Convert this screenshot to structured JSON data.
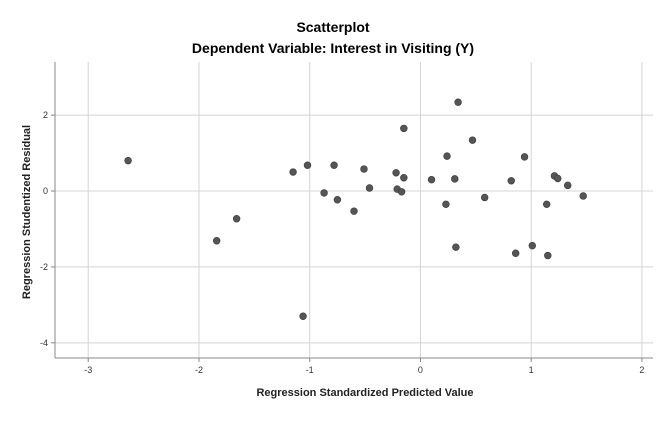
{
  "chart_data": {
    "type": "scatter",
    "title": "Scatterplot",
    "subtitle": "Dependent Variable: Interest in Visiting (Y)",
    "xlabel": "Regression Standardized Predicted Value",
    "ylabel": "Regression Studentized Residual",
    "xlim": [
      -3.3,
      2.1
    ],
    "ylim": [
      -4.4,
      3.4
    ],
    "xticks": [
      -3,
      -2,
      -1,
      0,
      1,
      2
    ],
    "yticks": [
      -4,
      -2,
      0,
      2
    ],
    "grid": true,
    "point_color": "#555555",
    "points": [
      {
        "x": -2.64,
        "y": 0.8
      },
      {
        "x": -1.84,
        "y": -1.31
      },
      {
        "x": -1.66,
        "y": -0.73
      },
      {
        "x": -1.15,
        "y": 0.5
      },
      {
        "x": -1.06,
        "y": -3.3
      },
      {
        "x": -1.02,
        "y": 0.68
      },
      {
        "x": -0.87,
        "y": -0.05
      },
      {
        "x": -0.78,
        "y": 0.68
      },
      {
        "x": -0.75,
        "y": -0.23
      },
      {
        "x": -0.6,
        "y": -0.53
      },
      {
        "x": -0.51,
        "y": 0.58
      },
      {
        "x": -0.46,
        "y": 0.08
      },
      {
        "x": -0.22,
        "y": 0.48
      },
      {
        "x": -0.21,
        "y": 0.05
      },
      {
        "x": -0.17,
        "y": -0.02
      },
      {
        "x": -0.15,
        "y": 0.35
      },
      {
        "x": -0.15,
        "y": 1.65
      },
      {
        "x": 0.1,
        "y": 0.3
      },
      {
        "x": 0.23,
        "y": -0.35
      },
      {
        "x": 0.24,
        "y": 0.92
      },
      {
        "x": 0.31,
        "y": 0.32
      },
      {
        "x": 0.32,
        "y": -1.48
      },
      {
        "x": 0.34,
        "y": 2.34
      },
      {
        "x": 0.47,
        "y": 1.34
      },
      {
        "x": 0.58,
        "y": -0.17
      },
      {
        "x": 0.82,
        "y": 0.27
      },
      {
        "x": 0.86,
        "y": -1.64
      },
      {
        "x": 0.94,
        "y": 0.9
      },
      {
        "x": 1.01,
        "y": -1.44
      },
      {
        "x": 1.14,
        "y": -0.35
      },
      {
        "x": 1.15,
        "y": -1.7
      },
      {
        "x": 1.21,
        "y": 0.4
      },
      {
        "x": 1.24,
        "y": 0.33
      },
      {
        "x": 1.33,
        "y": 0.15
      },
      {
        "x": 1.47,
        "y": -0.13
      }
    ]
  }
}
